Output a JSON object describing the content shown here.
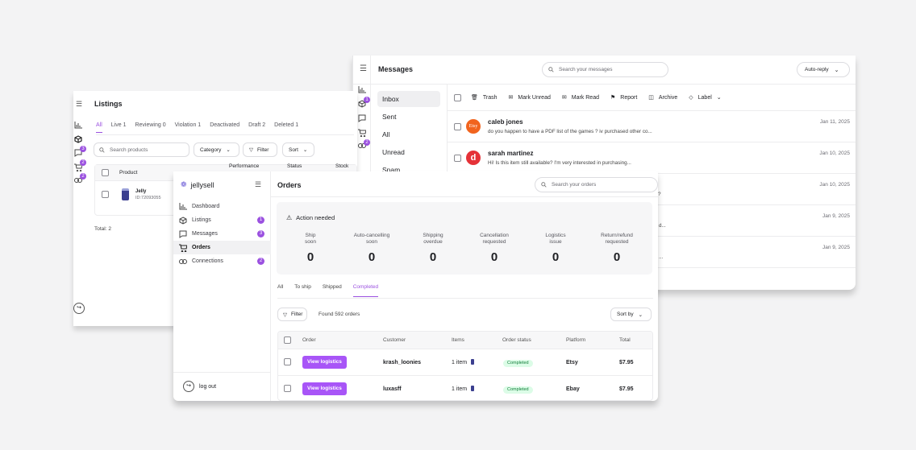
{
  "messages": {
    "title": "Messages",
    "search_placeholder": "Search your messages",
    "auto_reply": "Auto-reply",
    "folders": [
      "Inbox",
      "Sent",
      "All",
      "Unread",
      "Spam"
    ],
    "toolbar": [
      "Trash",
      "Mark Unread",
      "Mark Read",
      "Report",
      "Archive",
      "Label"
    ],
    "rail_badges": [
      "1",
      "2"
    ],
    "rows": [
      {
        "name": "caleb jones",
        "preview": "do you happen to have a PDF list of the games ? iv purchased other co...",
        "date": "Jan 11, 2025",
        "avatar": "Etsy",
        "avatar_color": "#f1641e"
      },
      {
        "name": "sarah martinez",
        "preview": "Hi! Is this item still available? I'm very interested in purchasing...",
        "date": "Jan 10, 2025",
        "avatar": "d",
        "avatar_color": "#e53238"
      },
      {
        "name": "",
        "preview": "da?",
        "date": "Jan 10, 2025"
      },
      {
        "name": "",
        "preview": "d...",
        "date": "Jan 9, 2025"
      },
      {
        "name": "",
        "preview": "...",
        "date": "Jan 9, 2025"
      }
    ]
  },
  "listings": {
    "title": "Listings",
    "tabs": [
      "All",
      "Live 1",
      "Reviewing 0",
      "Violation 1",
      "Deactivated",
      "Draft 2",
      "Deleted 1"
    ],
    "search_placeholder": "Search products",
    "category": "Category",
    "filter": "Filter",
    "sort": "Sort",
    "col_product": "Product",
    "col_performance": "Performance",
    "col_status": "Status",
    "col_stock": "Stock",
    "product_name": "Jelly",
    "product_id": "ID:72093055",
    "total": "Total: 2",
    "rail_badges": [
      "3",
      "2",
      "2"
    ]
  },
  "orders": {
    "brand": "jellysell",
    "nav": [
      {
        "label": "Dashboard",
        "badge": ""
      },
      {
        "label": "Listings",
        "badge": "1"
      },
      {
        "label": "Messages",
        "badge": "3"
      },
      {
        "label": "Orders",
        "badge": ""
      },
      {
        "label": "Connections",
        "badge": "2"
      }
    ],
    "logout": "log out",
    "title": "Orders",
    "search_placeholder": "Search your orders",
    "action_needed": "Action needed",
    "stats": [
      {
        "label1": "Ship",
        "label2": "soon",
        "value": "0"
      },
      {
        "label1": "Auto-cancelling",
        "label2": "soon",
        "value": "0"
      },
      {
        "label1": "Shipping",
        "label2": "overdue",
        "value": "0"
      },
      {
        "label1": "Cancellation",
        "label2": "requested",
        "value": "0"
      },
      {
        "label1": "Logistics",
        "label2": "issue",
        "value": "0"
      },
      {
        "label1": "Return/refund",
        "label2": "requested",
        "value": "0"
      }
    ],
    "tabs": [
      "All",
      "To ship",
      "Shipped",
      "Completed"
    ],
    "filter": "Filter",
    "found": "Found 592 orders",
    "sort_by": "Sort by",
    "columns": [
      "Order",
      "Customer",
      "Items",
      "Order status",
      "Platform",
      "Total"
    ],
    "rows": [
      {
        "button": "View logistics",
        "customer": "krash_loonies",
        "items": "1 item",
        "status": "Completed",
        "platform": "Etsy",
        "total": "$7.95"
      },
      {
        "button": "View logistics",
        "customer": "luxasff",
        "items": "1 item",
        "status": "Completed",
        "platform": "Ebay",
        "total": "$7.95"
      }
    ]
  },
  "colors": {
    "accent": "#9b51e0",
    "button": "#a855f7",
    "completed_bg": "#dcfce7",
    "completed_fg": "#15803d"
  }
}
